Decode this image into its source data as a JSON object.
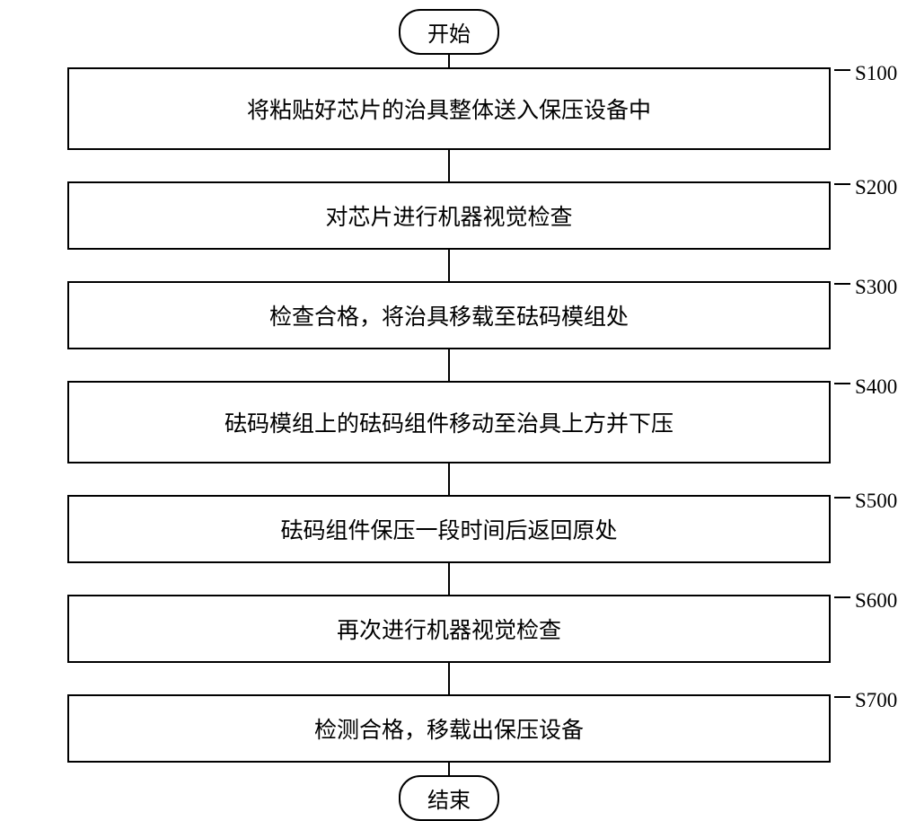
{
  "flowchart": {
    "type": "flowchart",
    "background_color": "#ffffff",
    "border_color": "#000000",
    "text_color": "#000000",
    "font_family": "SimSun",
    "terminator_fontsize": 24,
    "process_fontsize": 25,
    "label_fontsize": 23,
    "start": "开始",
    "end": "结束",
    "steps": [
      {
        "id": "S100",
        "text": "将粘贴好芯片的治具整体送入保压设备中"
      },
      {
        "id": "S200",
        "text": "对芯片进行机器视觉检查"
      },
      {
        "id": "S300",
        "text": "检查合格，将治具移载至砝码模组处"
      },
      {
        "id": "S400",
        "text": "砝码模组上的砝码组件移动至治具上方并下压"
      },
      {
        "id": "S500",
        "text": "砝码组件保压一段时间后返回原处"
      },
      {
        "id": "S600",
        "text": "再次进行机器视觉检查"
      },
      {
        "id": "S700",
        "text": "检测合格，移载出保压设备"
      }
    ]
  }
}
